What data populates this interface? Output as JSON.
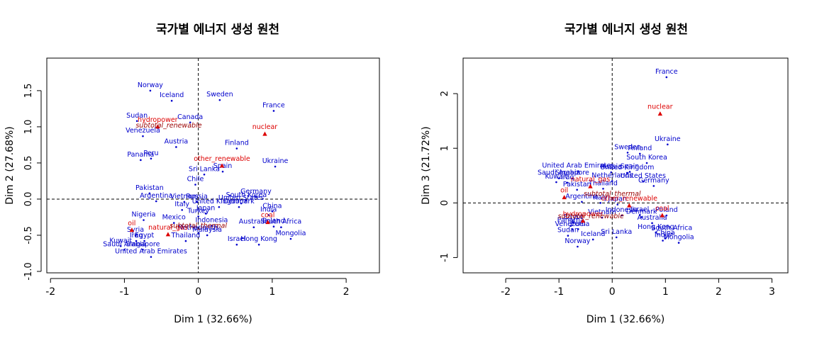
{
  "chart_data": [
    {
      "type": "scatter",
      "title": "국가별 에너지 생성 원천",
      "xlabel": "Dim 1 (32.66%)",
      "ylabel": "Dim 2 (27.68%)",
      "xlim": [
        -2.05,
        2.45
      ],
      "ylim": [
        -1.02,
        1.95
      ],
      "xticks": [
        "-2",
        "-1",
        "0",
        "1",
        "2"
      ],
      "yticks": [
        "-1.0",
        "-0.5",
        "0.0",
        "0.5",
        "1.0",
        "1.5"
      ],
      "xtick_values": [
        -2,
        -1,
        0,
        1,
        2
      ],
      "ytick_values": [
        -1.0,
        -0.5,
        0.0,
        0.5,
        1.0,
        1.5
      ],
      "reference_lines": {
        "x": 0,
        "y": 0,
        "style": "dashed"
      },
      "grid": false,
      "colors": {
        "rows": "#0000cc",
        "columns": "#dd0000",
        "supplementary": "#990000"
      },
      "countries": [
        {
          "label": "Norway",
          "x": -0.65,
          "y": 1.5
        },
        {
          "label": "Iceland",
          "x": -0.36,
          "y": 1.36
        },
        {
          "label": "Sweden",
          "x": 0.29,
          "y": 1.37
        },
        {
          "label": "France",
          "x": 1.02,
          "y": 1.22
        },
        {
          "label": "Sudan",
          "x": -0.83,
          "y": 1.08
        },
        {
          "label": "Canada",
          "x": -0.11,
          "y": 1.06
        },
        {
          "label": "Venezuela",
          "x": -0.75,
          "y": 0.87
        },
        {
          "label": "Austria",
          "x": -0.3,
          "y": 0.72
        },
        {
          "label": "Finland",
          "x": 0.52,
          "y": 0.7
        },
        {
          "label": "Panama",
          "x": -0.78,
          "y": 0.54
        },
        {
          "label": "Peru",
          "x": -0.64,
          "y": 0.56
        },
        {
          "label": "Ukraine",
          "x": 1.04,
          "y": 0.45
        },
        {
          "label": "Sri Lanka",
          "x": 0.08,
          "y": 0.34
        },
        {
          "label": "Spain",
          "x": 0.33,
          "y": 0.38
        },
        {
          "label": "Chile",
          "x": -0.04,
          "y": 0.2
        },
        {
          "label": "Pakistan",
          "x": -0.66,
          "y": 0.08
        },
        {
          "label": "Argentina",
          "x": -0.57,
          "y": -0.03
        },
        {
          "label": "Vietnam",
          "x": -0.19,
          "y": -0.04
        },
        {
          "label": "Russia",
          "x": -0.02,
          "y": -0.04
        },
        {
          "label": "Germany",
          "x": 0.78,
          "y": 0.03
        },
        {
          "label": "United States",
          "x": 0.58,
          "y": -0.06
        },
        {
          "label": "South Korea",
          "x": 0.65,
          "y": -0.02
        },
        {
          "label": "Denmark",
          "x": 0.55,
          "y": -0.11
        },
        {
          "label": "China",
          "x": 1.0,
          "y": -0.17
        },
        {
          "label": "India",
          "x": 0.95,
          "y": -0.22
        },
        {
          "label": "United Kingdom",
          "x": 0.28,
          "y": -0.11
        },
        {
          "label": "Italy",
          "x": -0.22,
          "y": -0.15
        },
        {
          "label": "Japan",
          "x": 0.1,
          "y": -0.2
        },
        {
          "label": "Turkey",
          "x": 0.0,
          "y": -0.24
        },
        {
          "label": "Nigeria",
          "x": -0.74,
          "y": -0.29
        },
        {
          "label": "Mexico",
          "x": -0.33,
          "y": -0.33
        },
        {
          "label": "Indonesia",
          "x": 0.18,
          "y": -0.37
        },
        {
          "label": "Netherlands",
          "x": 0.0,
          "y": -0.47
        },
        {
          "label": "Malaysia",
          "x": 0.12,
          "y": -0.5
        },
        {
          "label": "Australia",
          "x": 0.75,
          "y": -0.39
        },
        {
          "label": "Poland",
          "x": 1.02,
          "y": -0.38
        },
        {
          "label": "South Africa",
          "x": 1.12,
          "y": -0.39
        },
        {
          "label": "Mongolia",
          "x": 1.25,
          "y": -0.55
        },
        {
          "label": "Syria",
          "x": -0.85,
          "y": -0.5
        },
        {
          "label": "Iraq",
          "x": -0.84,
          "y": -0.58
        },
        {
          "label": "Egypt",
          "x": -0.73,
          "y": -0.58
        },
        {
          "label": "Thailand",
          "x": -0.17,
          "y": -0.58
        },
        {
          "label": "Israel",
          "x": 0.52,
          "y": -0.63
        },
        {
          "label": "Hong Kong",
          "x": 0.82,
          "y": -0.63
        },
        {
          "label": "Kuwait",
          "x": -1.05,
          "y": -0.65
        },
        {
          "label": "Saudi Arabia",
          "x": -1.0,
          "y": -0.7
        },
        {
          "label": "Singapore",
          "x": -0.75,
          "y": -0.7
        },
        {
          "label": "United Arab Emirates",
          "x": -0.64,
          "y": -0.8
        }
      ],
      "sources": [
        {
          "label": "hydropower",
          "x": -0.55,
          "y": 1.0
        },
        {
          "label": "nuclear",
          "x": 0.9,
          "y": 0.9
        },
        {
          "label": "other_renewable",
          "x": 0.32,
          "y": 0.46
        },
        {
          "label": "oil",
          "x": -0.9,
          "y": -0.43
        },
        {
          "label": "natural_gas",
          "x": -0.41,
          "y": -0.49
        },
        {
          "label": "coal",
          "x": 0.94,
          "y": -0.32
        }
      ],
      "supplementary": [
        {
          "label": "subtotal_renewable",
          "x": -0.4,
          "y": 0.99
        },
        {
          "label": "subtotal_thermal",
          "x": 0.0,
          "y": -0.4
        }
      ]
    },
    {
      "type": "scatter",
      "title": "국가별 에너지 생성 원천",
      "xlabel": "Dim 1 (32.66%)",
      "ylabel": "Dim 3 (21.72%)",
      "xlim": [
        -2.8,
        3.3
      ],
      "ylim": [
        -1.28,
        2.65
      ],
      "xticks": [
        "-2",
        "-1",
        "0",
        "1",
        "2",
        "3"
      ],
      "yticks": [
        "-1",
        "0",
        "1",
        "2"
      ],
      "xtick_values": [
        -2,
        -1,
        0,
        1,
        2,
        3
      ],
      "ytick_values": [
        -1,
        0,
        1,
        2
      ],
      "reference_lines": {
        "x": 0,
        "y": 0,
        "style": "dashed"
      },
      "grid": false,
      "colors": {
        "rows": "#0000cc",
        "columns": "#dd0000",
        "supplementary": "#990000"
      },
      "countries": [
        {
          "label": "France",
          "x": 1.02,
          "y": 2.3
        },
        {
          "label": "Ukraine",
          "x": 1.04,
          "y": 1.07
        },
        {
          "label": "Sweden",
          "x": 0.29,
          "y": 0.92
        },
        {
          "label": "Finland",
          "x": 0.52,
          "y": 0.9
        },
        {
          "label": "South Korea",
          "x": 0.65,
          "y": 0.73
        },
        {
          "label": "United Arab Emirates",
          "x": -0.64,
          "y": 0.58
        },
        {
          "label": "Russia",
          "x": -0.02,
          "y": 0.56
        },
        {
          "label": "Spain",
          "x": 0.33,
          "y": 0.57
        },
        {
          "label": "United Kingdom",
          "x": 0.28,
          "y": 0.55
        },
        {
          "label": "Saudi Arabia",
          "x": -1.0,
          "y": 0.45
        },
        {
          "label": "Singapore",
          "x": -0.75,
          "y": 0.45
        },
        {
          "label": "Kuwait",
          "x": -1.05,
          "y": 0.38
        },
        {
          "label": "Iraq",
          "x": -0.84,
          "y": 0.37
        },
        {
          "label": "United States",
          "x": 0.58,
          "y": 0.39
        },
        {
          "label": "Netherlands",
          "x": 0.0,
          "y": 0.4
        },
        {
          "label": "Germany",
          "x": 0.78,
          "y": 0.31
        },
        {
          "label": "Thailand",
          "x": -0.17,
          "y": 0.26
        },
        {
          "label": "Pakistan",
          "x": -0.66,
          "y": 0.24
        },
        {
          "label": "Vietnam",
          "x": -0.19,
          "y": -0.27
        },
        {
          "label": "Argentina",
          "x": -0.57,
          "y": 0.02
        },
        {
          "label": "Italy",
          "x": -0.22,
          "y": 0.0
        },
        {
          "label": "Japan",
          "x": 0.1,
          "y": -0.03
        },
        {
          "label": "Poland",
          "x": 1.02,
          "y": -0.23
        },
        {
          "label": "Denmark",
          "x": 0.55,
          "y": -0.26
        },
        {
          "label": "Israel",
          "x": 0.52,
          "y": -0.22
        },
        {
          "label": "Indonesia",
          "x": 0.18,
          "y": -0.23
        },
        {
          "label": "Peru",
          "x": -0.64,
          "y": -0.48
        },
        {
          "label": "Panama",
          "x": -0.78,
          "y": -0.42
        },
        {
          "label": "Venezuela",
          "x": -0.75,
          "y": -0.49
        },
        {
          "label": "Egypt",
          "x": -0.73,
          "y": -0.36
        },
        {
          "label": "Sudan",
          "x": -0.83,
          "y": -0.6
        },
        {
          "label": "Iceland",
          "x": -0.36,
          "y": -0.67
        },
        {
          "label": "Norway",
          "x": -0.65,
          "y": -0.8
        },
        {
          "label": "Sri Lanka",
          "x": 0.08,
          "y": -0.63
        },
        {
          "label": "Hong Kong",
          "x": 0.82,
          "y": -0.54
        },
        {
          "label": "Australia",
          "x": 0.75,
          "y": -0.37
        },
        {
          "label": "South Africa",
          "x": 1.12,
          "y": -0.56
        },
        {
          "label": "China",
          "x": 1.0,
          "y": -0.65
        },
        {
          "label": "India",
          "x": 0.95,
          "y": -0.69
        },
        {
          "label": "Mongolia",
          "x": 1.25,
          "y": -0.73
        }
      ],
      "sources": [
        {
          "label": "nuclear",
          "x": 0.9,
          "y": 1.63
        },
        {
          "label": "natural_gas",
          "x": -0.41,
          "y": 0.3
        },
        {
          "label": "oil",
          "x": -0.9,
          "y": 0.1
        },
        {
          "label": "coal",
          "x": 0.94,
          "y": -0.23
        },
        {
          "label": "hydropower",
          "x": -0.55,
          "y": -0.33
        },
        {
          "label": "other_renewable",
          "x": 0.32,
          "y": -0.05
        }
      ],
      "supplementary": [
        {
          "label": "subtotal_thermal",
          "x": 0.0,
          "y": 0.13
        },
        {
          "label": "subtotal_renewable",
          "x": -0.4,
          "y": -0.28
        }
      ]
    }
  ]
}
